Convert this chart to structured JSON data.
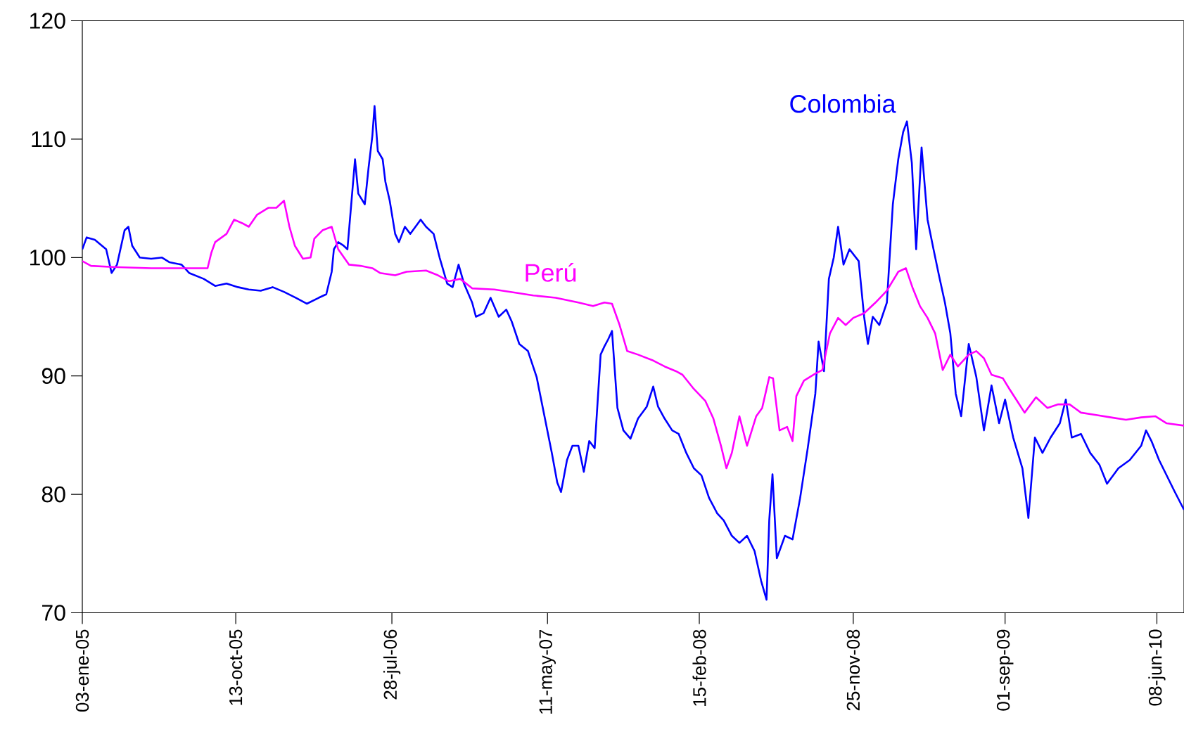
{
  "chart_data": {
    "type": "line",
    "xlim": [
      "2005-01-03",
      "2010-07-28"
    ],
    "ylim": [
      70,
      120
    ],
    "yticks": [
      70,
      80,
      90,
      100,
      110,
      120
    ],
    "xticks": [
      {
        "value": "2005-01-03",
        "label": "03-ene-05"
      },
      {
        "value": "2005-10-13",
        "label": "13-oct-05"
      },
      {
        "value": "2006-07-28",
        "label": "28-jul-06"
      },
      {
        "value": "2007-05-11",
        "label": "11-may-07"
      },
      {
        "value": "2008-02-15",
        "label": "15-feb-08"
      },
      {
        "value": "2008-11-25",
        "label": "25-nov-08"
      },
      {
        "value": "2009-09-01",
        "label": "01-sep-09"
      },
      {
        "value": "2010-06-08",
        "label": "08-jun-10"
      }
    ],
    "grid": false,
    "legend": false,
    "marker": "none",
    "line_style": "solid",
    "series": [
      {
        "name": "Colombia",
        "color": "#0000ff",
        "x": [
          "2005-01-03",
          "2005-01-11",
          "2005-01-26",
          "2005-02-16",
          "2005-02-26",
          "2005-03-08",
          "2005-03-22",
          "2005-03-29",
          "2005-04-05",
          "2005-04-19",
          "2005-05-10",
          "2005-05-30",
          "2005-06-13",
          "2005-07-05",
          "2005-07-19",
          "2005-08-15",
          "2005-09-05",
          "2005-09-26",
          "2005-10-17",
          "2005-11-06",
          "2005-11-28",
          "2005-12-20",
          "2006-01-10",
          "2006-02-01",
          "2006-02-21",
          "2006-03-15",
          "2006-03-29",
          "2006-04-08",
          "2006-04-12",
          "2006-04-20",
          "2006-04-30",
          "2006-05-07",
          "2006-05-14",
          "2006-05-21",
          "2006-05-27",
          "2006-06-08",
          "2006-06-15",
          "2006-06-22",
          "2006-06-26",
          "2006-07-02",
          "2006-07-11",
          "2006-07-16",
          "2006-07-24",
          "2006-08-03",
          "2006-08-10",
          "2006-08-21",
          "2006-08-31",
          "2006-09-19",
          "2006-09-29",
          "2006-10-13",
          "2006-10-24",
          "2006-11-07",
          "2006-11-17",
          "2006-11-28",
          "2006-12-08",
          "2006-12-23",
          "2006-12-30",
          "2007-01-13",
          "2007-01-26",
          "2007-02-10",
          "2007-02-24",
          "2007-03-06",
          "2007-03-20",
          "2007-04-05",
          "2007-04-21",
          "2007-05-05",
          "2007-05-19",
          "2007-05-29",
          "2007-06-05",
          "2007-06-16",
          "2007-06-26",
          "2007-07-07",
          "2007-07-17",
          "2007-07-27",
          "2007-08-06",
          "2007-08-17",
          "2007-08-24",
          "2007-08-31",
          "2007-09-07",
          "2007-09-17",
          "2007-09-28",
          "2007-10-11",
          "2007-10-25",
          "2007-11-10",
          "2007-11-22",
          "2007-12-01",
          "2007-12-13",
          "2007-12-27",
          "2008-01-08",
          "2008-01-22",
          "2008-02-05",
          "2008-02-19",
          "2008-03-04",
          "2008-03-19",
          "2008-03-31",
          "2008-04-15",
          "2008-04-29",
          "2008-05-13",
          "2008-05-27",
          "2008-06-08",
          "2008-06-18",
          "2008-06-23",
          "2008-06-29",
          "2008-07-07",
          "2008-07-22",
          "2008-08-05",
          "2008-08-19",
          "2008-09-02",
          "2008-09-16",
          "2008-09-22",
          "2008-10-02",
          "2008-10-11",
          "2008-10-20",
          "2008-10-28",
          "2008-11-07",
          "2008-11-18",
          "2008-12-05",
          "2008-12-15",
          "2008-12-22",
          "2008-12-31",
          "2009-01-12",
          "2009-01-26",
          "2009-02-06",
          "2009-02-16",
          "2009-02-25",
          "2009-03-04",
          "2009-03-13",
          "2009-03-21",
          "2009-03-31",
          "2009-04-11",
          "2009-04-22",
          "2009-05-02",
          "2009-05-13",
          "2009-05-23",
          "2009-06-02",
          "2009-06-12",
          "2009-06-26",
          "2009-07-10",
          "2009-07-24",
          "2009-08-07",
          "2009-08-21",
          "2009-09-01",
          "2009-09-16",
          "2009-10-03",
          "2009-10-14",
          "2009-10-26",
          "2009-11-09",
          "2009-11-24",
          "2009-12-11",
          "2009-12-22",
          "2010-01-02",
          "2010-01-19",
          "2010-02-05",
          "2010-02-22",
          "2010-03-08",
          "2010-03-29",
          "2010-04-19",
          "2010-05-10",
          "2010-05-19",
          "2010-05-29",
          "2010-06-12",
          "2010-06-26",
          "2010-07-10",
          "2010-07-28"
        ],
        "values": [
          100.7,
          101.7,
          101.5,
          100.7,
          98.7,
          99.4,
          102.3,
          102.6,
          101,
          100,
          99.9,
          100,
          99.6,
          99.4,
          98.7,
          98.2,
          97.6,
          97.8,
          97.5,
          97.3,
          97.2,
          97.5,
          97.1,
          96.6,
          96.1,
          96.6,
          96.9,
          98.8,
          100.7,
          101.3,
          101,
          100.7,
          104.5,
          108.3,
          105.4,
          104.5,
          107.6,
          110.3,
          112.8,
          109,
          108.3,
          106.4,
          104.8,
          102,
          101.3,
          102.6,
          102,
          103.2,
          102.6,
          102,
          100,
          97.8,
          97.5,
          99.4,
          97.8,
          96.2,
          95,
          95.3,
          96.6,
          95,
          95.6,
          94.6,
          92.7,
          92.1,
          89.9,
          86.7,
          83.5,
          81,
          80.2,
          82.9,
          84.1,
          84.1,
          81.9,
          84.5,
          83.9,
          91.8,
          92.5,
          93.1,
          93.8,
          87.3,
          85.4,
          84.7,
          86.4,
          87.4,
          89.1,
          87.4,
          86.4,
          85.4,
          85.1,
          83.5,
          82.2,
          81.6,
          79.7,
          78.4,
          77.8,
          76.5,
          75.9,
          76.5,
          75.2,
          72.7,
          71.1,
          77.8,
          81.7,
          74.6,
          76.5,
          76.2,
          79.7,
          83.9,
          88.5,
          92.9,
          90.4,
          98.2,
          100,
          102.6,
          99.4,
          100.7,
          99.7,
          95,
          92.7,
          95,
          94.3,
          96.2,
          104.5,
          108.3,
          110.6,
          111.5,
          108,
          100.7,
          109.3,
          103.2,
          100.7,
          98.5,
          96.2,
          93.6,
          88.5,
          86.6,
          92.7,
          89.9,
          85.4,
          89.2,
          86,
          88,
          84.8,
          82.2,
          78,
          84.8,
          83.5,
          84.8,
          86,
          88,
          84.8,
          85.1,
          83.5,
          82.5,
          80.9,
          82.2,
          82.9,
          84.1,
          85.4,
          84.5,
          82.9,
          81.6,
          80.3,
          78.7
        ]
      },
      {
        "name": "Perú",
        "color": "#ff00ff",
        "x": [
          "2005-01-03",
          "2005-01-19",
          "2005-03-01",
          "2005-05-10",
          "2005-07-05",
          "2005-08-22",
          "2005-08-29",
          "2005-09-05",
          "2005-09-26",
          "2005-10-10",
          "2005-10-25",
          "2005-11-06",
          "2005-11-21",
          "2005-12-12",
          "2005-12-27",
          "2006-01-10",
          "2006-01-20",
          "2006-01-30",
          "2006-02-14",
          "2006-02-28",
          "2006-03-07",
          "2006-03-22",
          "2006-04-08",
          "2006-04-20",
          "2006-05-10",
          "2006-05-31",
          "2006-06-22",
          "2006-07-06",
          "2006-08-03",
          "2006-08-24",
          "2006-09-29",
          "2006-10-21",
          "2006-11-10",
          "2006-12-01",
          "2006-12-23",
          "2007-02-02",
          "2007-03-17",
          "2007-04-15",
          "2007-05-26",
          "2007-07-07",
          "2007-08-03",
          "2007-08-24",
          "2007-09-07",
          "2007-09-21",
          "2007-10-05",
          "2007-10-25",
          "2007-11-22",
          "2007-12-13",
          "2008-01-03",
          "2008-01-15",
          "2008-02-05",
          "2008-02-26",
          "2008-03-12",
          "2008-03-26",
          "2008-04-05",
          "2008-04-15",
          "2008-04-29",
          "2008-05-13",
          "2008-05-30",
          "2008-06-10",
          "2008-06-23",
          "2008-06-30",
          "2008-07-12",
          "2008-07-26",
          "2008-08-05",
          "2008-08-12",
          "2008-08-26",
          "2008-09-16",
          "2008-09-29",
          "2008-10-13",
          "2008-10-28",
          "2008-11-11",
          "2008-11-25",
          "2008-12-15",
          "2009-01-05",
          "2009-01-26",
          "2009-02-16",
          "2009-03-02",
          "2009-03-14",
          "2009-03-28",
          "2009-04-11",
          "2009-04-25",
          "2009-05-09",
          "2009-05-23",
          "2009-06-06",
          "2009-06-26",
          "2009-07-10",
          "2009-07-24",
          "2009-08-07",
          "2009-08-28",
          "2009-09-09",
          "2009-09-23",
          "2009-10-07",
          "2009-10-28",
          "2009-11-18",
          "2009-12-08",
          "2009-12-29",
          "2010-01-19",
          "2010-02-16",
          "2010-03-15",
          "2010-04-12",
          "2010-05-10",
          "2010-06-05",
          "2010-06-26",
          "2010-07-28"
        ],
        "values": [
          99.7,
          99.3,
          99.2,
          99.1,
          99.1,
          99.1,
          100.4,
          101.3,
          102,
          103.2,
          102.9,
          102.6,
          103.6,
          104.2,
          104.2,
          104.8,
          102.6,
          101,
          99.9,
          100,
          101.6,
          102.3,
          102.6,
          100.7,
          99.4,
          99.3,
          99.1,
          98.7,
          98.5,
          98.8,
          98.9,
          98.5,
          98,
          98.2,
          97.4,
          97.3,
          97,
          96.8,
          96.6,
          96.2,
          95.9,
          96.2,
          96.1,
          94.3,
          92.1,
          91.8,
          91.3,
          90.8,
          90.4,
          90.1,
          88.9,
          87.9,
          86.4,
          84.1,
          82.2,
          83.5,
          86.6,
          84.1,
          86.6,
          87.3,
          89.9,
          89.8,
          85.4,
          85.7,
          84.5,
          88.3,
          89.6,
          90.2,
          90.5,
          93.6,
          94.9,
          94.3,
          94.9,
          95.3,
          96.2,
          97.2,
          98.8,
          99.1,
          97.5,
          95.9,
          94.9,
          93.6,
          90.5,
          91.8,
          90.8,
          91.8,
          92.1,
          91.5,
          90.1,
          89.8,
          88.9,
          87.9,
          86.9,
          88.2,
          87.3,
          87.6,
          87.6,
          86.9,
          86.7,
          86.5,
          86.3,
          86.5,
          86.6,
          86,
          85.8
        ]
      }
    ]
  }
}
